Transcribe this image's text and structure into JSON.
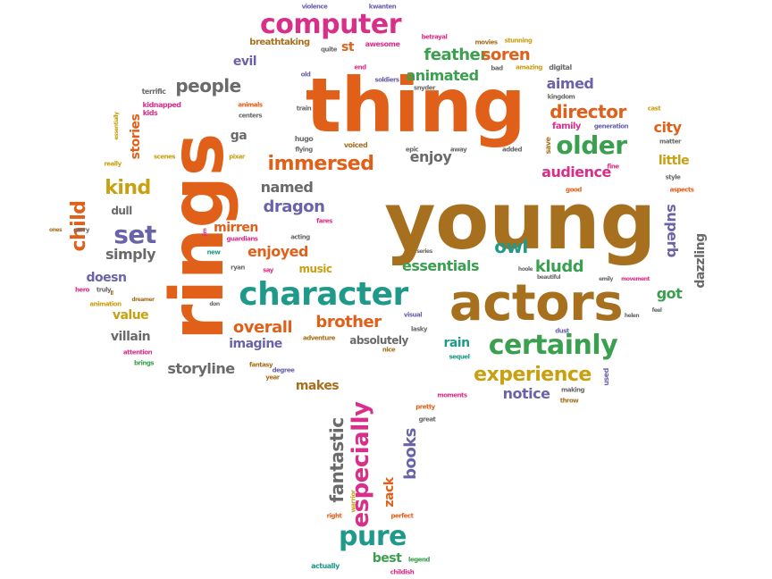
{
  "colors": {
    "orange": "#e0601a",
    "gold": "#a6701e",
    "green": "#3aa050",
    "teal": "#1f9a8a",
    "purple": "#6a63a8",
    "pink": "#d8308a",
    "yellow": "#c8a010",
    "grey": "#6a6a6a"
  },
  "words": [
    {
      "text": "thing",
      "color": "orange"
    },
    {
      "text": "young",
      "color": "gold"
    },
    {
      "text": "rings",
      "color": "orange"
    },
    {
      "text": "actors",
      "color": "gold"
    },
    {
      "text": "character",
      "color": "teal"
    },
    {
      "text": "certainly",
      "color": "green"
    },
    {
      "text": "computer",
      "color": "pink"
    },
    {
      "text": "older",
      "color": "green"
    },
    {
      "text": "pure",
      "color": "teal"
    },
    {
      "text": "experience",
      "color": "yellow"
    },
    {
      "text": "set",
      "color": "purple"
    },
    {
      "text": "immersed",
      "color": "orange"
    },
    {
      "text": "director",
      "color": "orange"
    },
    {
      "text": "feather",
      "color": "green"
    },
    {
      "text": "soren",
      "color": "orange"
    },
    {
      "text": "people",
      "color": "grey"
    },
    {
      "text": "kind",
      "color": "yellow"
    },
    {
      "text": "dragon",
      "color": "purple"
    },
    {
      "text": "enjoyed",
      "color": "orange"
    },
    {
      "text": "essentials",
      "color": "green"
    },
    {
      "text": "owl",
      "color": "teal"
    },
    {
      "text": "kludd",
      "color": "green"
    },
    {
      "text": "brother",
      "color": "orange"
    },
    {
      "text": "overall",
      "color": "orange"
    },
    {
      "text": "audience",
      "color": "pink"
    },
    {
      "text": "especially",
      "color": "pink"
    },
    {
      "text": "books",
      "color": "purple"
    },
    {
      "text": "fantastic",
      "color": "grey"
    },
    {
      "text": "superb",
      "color": "purple"
    },
    {
      "text": "child",
      "color": "orange"
    },
    {
      "text": "stories",
      "color": "orange"
    },
    {
      "text": "animated",
      "color": "green"
    },
    {
      "text": "aimed",
      "color": "purple"
    },
    {
      "text": "city",
      "color": "orange"
    },
    {
      "text": "little",
      "color": "yellow"
    },
    {
      "text": "enjoy",
      "color": "grey"
    },
    {
      "text": "named",
      "color": "grey"
    },
    {
      "text": "mirren",
      "color": "orange"
    },
    {
      "text": "simply",
      "color": "grey"
    },
    {
      "text": "doesn",
      "color": "purple"
    },
    {
      "text": "value",
      "color": "yellow"
    },
    {
      "text": "villain",
      "color": "grey"
    },
    {
      "text": "storyline",
      "color": "grey"
    },
    {
      "text": "imagine",
      "color": "purple"
    },
    {
      "text": "makes",
      "color": "gold"
    },
    {
      "text": "notice",
      "color": "purple"
    },
    {
      "text": "rain",
      "color": "teal"
    },
    {
      "text": "got",
      "color": "green"
    },
    {
      "text": "dazzling",
      "color": "grey"
    },
    {
      "text": "best",
      "color": "green"
    },
    {
      "text": "zack",
      "color": "orange"
    },
    {
      "text": "music",
      "color": "yellow"
    },
    {
      "text": "absolutely",
      "color": "grey"
    },
    {
      "text": "evil",
      "color": "purple"
    },
    {
      "text": "st",
      "color": "orange"
    },
    {
      "text": "ga",
      "color": "grey"
    },
    {
      "text": "dull",
      "color": "grey"
    },
    {
      "text": "family",
      "color": "pink"
    },
    {
      "text": "breathtaking",
      "color": "gold"
    },
    {
      "text": "violence",
      "color": "purple"
    },
    {
      "text": "kwanten",
      "color": "purple"
    },
    {
      "text": "awesome",
      "color": "pink"
    },
    {
      "text": "betrayal",
      "color": "pink"
    },
    {
      "text": "movies",
      "color": "gold"
    },
    {
      "text": "stunning",
      "color": "yellow"
    },
    {
      "text": "quite",
      "color": "grey"
    },
    {
      "text": "bad",
      "color": "grey"
    },
    {
      "text": "amazing",
      "color": "yellow"
    },
    {
      "text": "digital",
      "color": "grey"
    },
    {
      "text": "end",
      "color": "pink"
    },
    {
      "text": "old",
      "color": "purple"
    },
    {
      "text": "soldiers",
      "color": "purple"
    },
    {
      "text": "snyder",
      "color": "grey"
    },
    {
      "text": "terrific",
      "color": "grey"
    },
    {
      "text": "kidnapped",
      "color": "pink"
    },
    {
      "text": "kids",
      "color": "pink"
    },
    {
      "text": "animals",
      "color": "orange"
    },
    {
      "text": "centers",
      "color": "grey"
    },
    {
      "text": "train",
      "color": "grey"
    },
    {
      "text": "kingdom",
      "color": "grey"
    },
    {
      "text": "generation",
      "color": "purple"
    },
    {
      "text": "cast",
      "color": "yellow"
    },
    {
      "text": "essentially",
      "color": "yellow"
    },
    {
      "text": "hugo",
      "color": "grey"
    },
    {
      "text": "voiced",
      "color": "gold"
    },
    {
      "text": "save",
      "color": "gold"
    },
    {
      "text": "matter",
      "color": "grey"
    },
    {
      "text": "really",
      "color": "yellow"
    },
    {
      "text": "scenes",
      "color": "yellow"
    },
    {
      "text": "pixar",
      "color": "yellow"
    },
    {
      "text": "flying",
      "color": "grey"
    },
    {
      "text": "epic",
      "color": "grey"
    },
    {
      "text": "away",
      "color": "grey"
    },
    {
      "text": "added",
      "color": "grey"
    },
    {
      "text": "fine",
      "color": "pink"
    },
    {
      "text": "good",
      "color": "orange"
    },
    {
      "text": "style",
      "color": "grey"
    },
    {
      "text": "aspects",
      "color": "orange"
    },
    {
      "text": "ones",
      "color": "gold"
    },
    {
      "text": "carry",
      "color": "grey"
    },
    {
      "text": "guardians",
      "color": "pink"
    },
    {
      "text": "acting",
      "color": "grey"
    },
    {
      "text": "fares",
      "color": "pink"
    },
    {
      "text": "new",
      "color": "teal"
    },
    {
      "text": "ryan",
      "color": "grey"
    },
    {
      "text": "say",
      "color": "pink"
    },
    {
      "text": "series",
      "color": "grey"
    },
    {
      "text": "hoole",
      "color": "grey"
    },
    {
      "text": "beautiful",
      "color": "grey"
    },
    {
      "text": "emily",
      "color": "grey"
    },
    {
      "text": "movement",
      "color": "pink"
    },
    {
      "text": "truly",
      "color": "grey"
    },
    {
      "text": "hero",
      "color": "pink"
    },
    {
      "text": "animation",
      "color": "yellow"
    },
    {
      "text": "don",
      "color": "grey"
    },
    {
      "text": "helen",
      "color": "grey"
    },
    {
      "text": "feel",
      "color": "grey"
    },
    {
      "text": "visual",
      "color": "purple"
    },
    {
      "text": "lasky",
      "color": "grey"
    },
    {
      "text": "dust",
      "color": "purple"
    },
    {
      "text": "sequel",
      "color": "teal"
    },
    {
      "text": "adventure",
      "color": "gold"
    },
    {
      "text": "nice",
      "color": "gold"
    },
    {
      "text": "attention",
      "color": "pink"
    },
    {
      "text": "brings",
      "color": "green"
    },
    {
      "text": "fantasy",
      "color": "gold"
    },
    {
      "text": "degree",
      "color": "purple"
    },
    {
      "text": "year",
      "color": "gold"
    },
    {
      "text": "used",
      "color": "purple"
    },
    {
      "text": "moments",
      "color": "pink"
    },
    {
      "text": "making",
      "color": "grey"
    },
    {
      "text": "throw",
      "color": "gold"
    },
    {
      "text": "pretty",
      "color": "orange"
    },
    {
      "text": "great",
      "color": "grey"
    },
    {
      "text": "warrior",
      "color": "yellow"
    },
    {
      "text": "right",
      "color": "orange"
    },
    {
      "text": "perfect",
      "color": "orange"
    },
    {
      "text": "actually",
      "color": "teal"
    },
    {
      "text": "legend",
      "color": "green"
    },
    {
      "text": "childish",
      "color": "pink"
    },
    {
      "text": "dreamer",
      "color": "gold"
    },
    {
      "text": "ll",
      "color": "gold"
    },
    {
      "text": "jim",
      "color": "pink"
    }
  ]
}
